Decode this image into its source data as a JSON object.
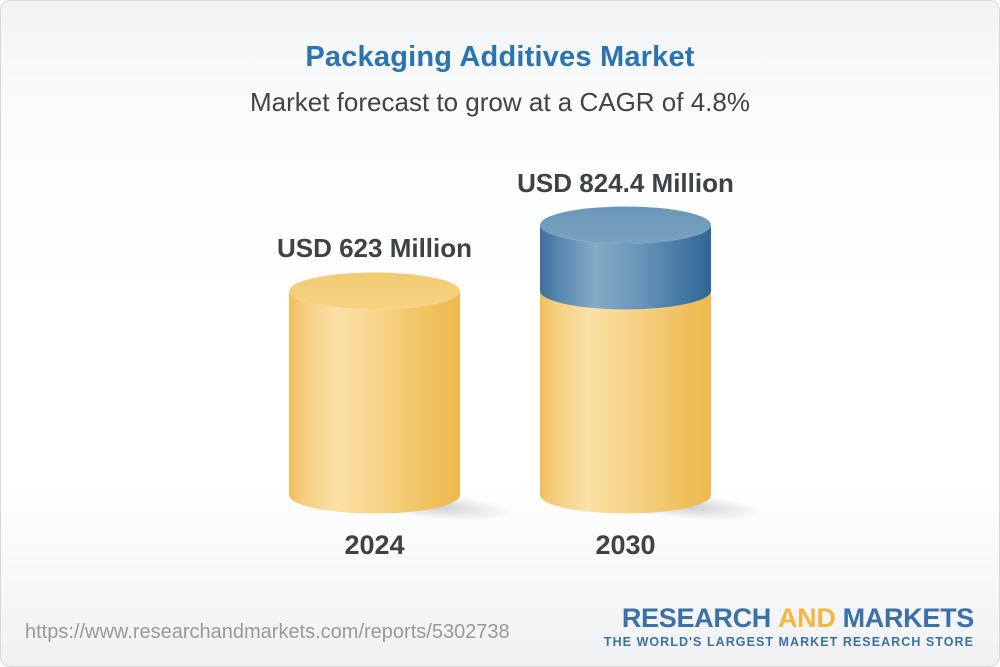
{
  "chart_data": {
    "type": "bar",
    "title": "Packaging Additives Market",
    "subtitle": "Market forecast to grow at a CAGR of 4.8%",
    "cagr_percent": 4.8,
    "unit": "USD Million",
    "categories": [
      "2024",
      "2030"
    ],
    "values": [
      623,
      824.4
    ],
    "stacked": true,
    "grid": false,
    "legend": false,
    "bars": [
      {
        "category": "2024",
        "value": 623,
        "label": "USD 623 Million",
        "segments": [
          {
            "to": 623,
            "color": "gold"
          }
        ]
      },
      {
        "category": "2030",
        "value": 824.4,
        "label": "USD 824.4 Million",
        "segments": [
          {
            "to": 623,
            "color": "gold"
          },
          {
            "to": 824.4,
            "color": "blue"
          }
        ]
      }
    ]
  },
  "colors": {
    "title_blue": "#2B74B2",
    "text_dark": "#3E4245",
    "bar_gold_top": "#F5CE7C",
    "bar_gold_edge": "#EEB94F",
    "bar_gold_highlight": "#FBE1A7",
    "bar_blue_top": "#6E99BB",
    "bar_blue_edge": "#2E6697",
    "bar_blue_highlight": "#86AAC7",
    "url_gray": "#97999C",
    "brand_blue": "#3A71A8",
    "brand_gold": "#F2B843"
  },
  "footer": {
    "url": "https://www.researchandmarkets.com/reports/5302738",
    "logo": {
      "word1": "RESEARCH",
      "word2": "AND",
      "word3": "MARKETS",
      "tagline": "THE WORLD'S LARGEST MARKET RESEARCH STORE"
    }
  }
}
